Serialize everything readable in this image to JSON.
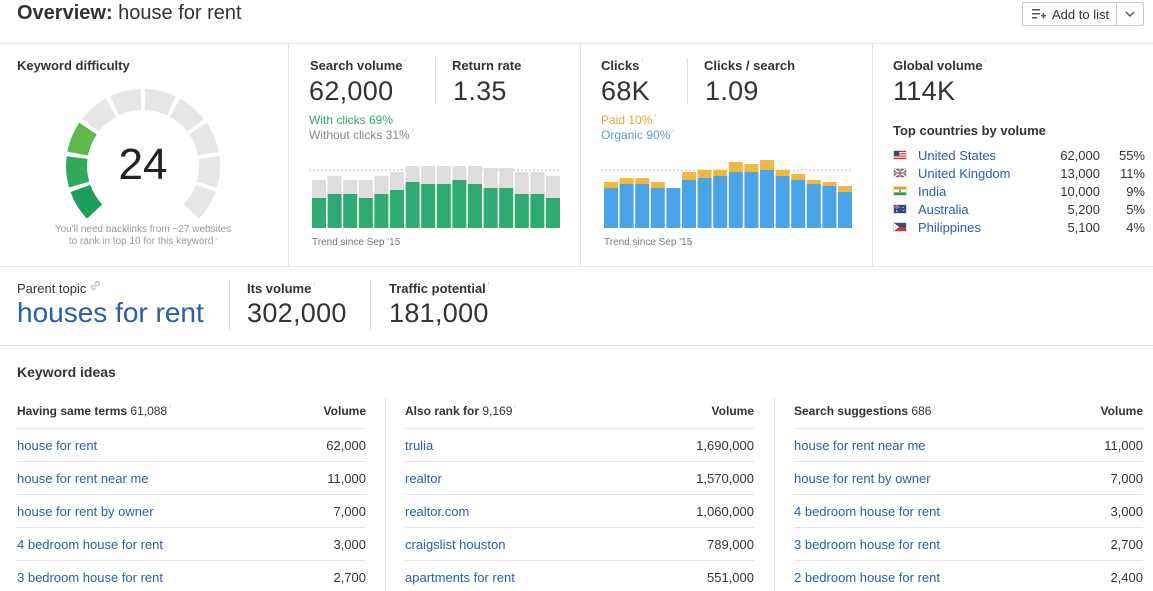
{
  "header": {
    "title_prefix": "Overview:",
    "title_keyword": "house for rent",
    "add_to_list_label": "Add to list"
  },
  "keyword_difficulty": {
    "label": "Keyword difficulty",
    "value": "24",
    "note_line1": "You'll need backlinks from ~27 websites",
    "note_line2": "to rank in top 10 for this keyword"
  },
  "search_volume": {
    "label": "Search volume",
    "value": "62,000",
    "return_rate_label": "Return rate",
    "return_rate_value": "1.35",
    "with_clicks": "With clicks 69%",
    "without_clicks": "Without clicks 31%",
    "trend_label": "Trend since Sep '15",
    "colors": {
      "with_clicks": "#2eaa72",
      "without_clicks": "#dddddd"
    }
  },
  "clicks": {
    "label": "Clicks",
    "value": "68K",
    "cps_label": "Clicks / search",
    "cps_value": "1.09",
    "paid": "Paid 10%",
    "organic": "Organic 90%",
    "trend_label": "Trend since Sep '15",
    "colors": {
      "paid": "#f0b840",
      "organic": "#4aa3e6"
    }
  },
  "global_volume": {
    "label": "Global volume",
    "value": "114K",
    "top_countries_label": "Top countries by volume",
    "countries": [
      {
        "name": "United States",
        "volume": "62,000",
        "pct": "55%",
        "flag": "us-flag-icon"
      },
      {
        "name": "United Kingdom",
        "volume": "13,000",
        "pct": "11%",
        "flag": "uk-flag-icon"
      },
      {
        "name": "India",
        "volume": "10,000",
        "pct": "9%",
        "flag": "india-flag-icon"
      },
      {
        "name": "Australia",
        "volume": "5,200",
        "pct": "5%",
        "flag": "australia-flag-icon"
      },
      {
        "name": "Philippines",
        "volume": "5,100",
        "pct": "4%",
        "flag": "philippines-flag-icon"
      }
    ]
  },
  "parent_topic": {
    "label": "Parent topic",
    "value": "houses for rent",
    "its_volume_label": "Its volume",
    "its_volume_value": "302,000",
    "traffic_potential_label": "Traffic potential",
    "traffic_potential_value": "181,000"
  },
  "keyword_ideas": {
    "title": "Keyword ideas",
    "columns": [
      {
        "title": "Having same terms",
        "count": "61,088",
        "volume_header": "Volume",
        "rows": [
          {
            "keyword": "house for rent",
            "volume": "62,000"
          },
          {
            "keyword": "house for rent near me",
            "volume": "11,000"
          },
          {
            "keyword": "house for rent by owner",
            "volume": "7,000"
          },
          {
            "keyword": "4 bedroom house for rent",
            "volume": "3,000"
          },
          {
            "keyword": "3 bedroom house for rent",
            "volume": "2,700"
          }
        ]
      },
      {
        "title": "Also rank for",
        "count": "9,169",
        "volume_header": "Volume",
        "rows": [
          {
            "keyword": "trulia",
            "volume": "1,690,000"
          },
          {
            "keyword": "realtor",
            "volume": "1,570,000"
          },
          {
            "keyword": "realtor.com",
            "volume": "1,060,000"
          },
          {
            "keyword": "craigslist houston",
            "volume": "789,000"
          },
          {
            "keyword": "apartments for rent",
            "volume": "551,000"
          }
        ]
      },
      {
        "title": "Search suggestions",
        "count": "686",
        "volume_header": "Volume",
        "rows": [
          {
            "keyword": "house for rent near me",
            "volume": "11,000"
          },
          {
            "keyword": "house for rent by owner",
            "volume": "7,000"
          },
          {
            "keyword": "4 bedroom house for rent",
            "volume": "3,000"
          },
          {
            "keyword": "3 bedroom house for rent",
            "volume": "2,700"
          },
          {
            "keyword": "2 bedroom house for rent",
            "volume": "2,400"
          }
        ]
      }
    ]
  }
}
